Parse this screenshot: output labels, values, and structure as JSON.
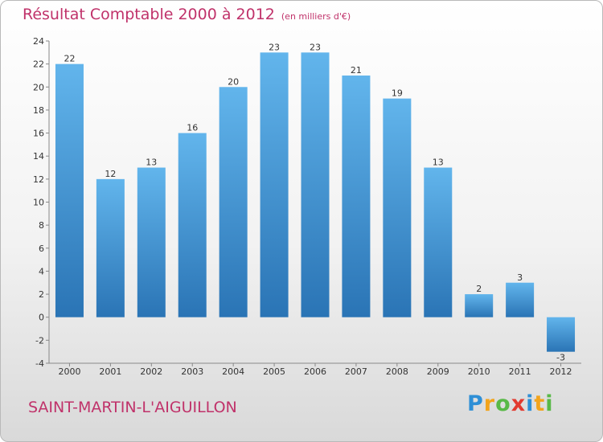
{
  "chart_data": {
    "type": "bar",
    "title": "Résultat Comptable 2000 à 2012",
    "subtitle": "(en milliers d'€)",
    "categories": [
      "2000",
      "2001",
      "2002",
      "2003",
      "2004",
      "2005",
      "2006",
      "2007",
      "2008",
      "2009",
      "2010",
      "2011",
      "2012"
    ],
    "values": [
      22,
      12,
      13,
      16,
      20,
      23,
      23,
      21,
      19,
      13,
      2,
      3,
      -3
    ],
    "ylim": [
      -4,
      24
    ],
    "yticks": [
      -4,
      -2,
      0,
      2,
      4,
      6,
      8,
      10,
      12,
      14,
      16,
      18,
      20,
      22,
      24
    ],
    "xlabel": "",
    "ylabel": "",
    "grid": false
  },
  "commune": "SAINT-MARTIN-L'AIGUILLON",
  "brand": {
    "letters": [
      "P",
      "r",
      "o",
      "x",
      "i",
      "t",
      "i"
    ],
    "colors": [
      "#2e8fd6",
      "#f2a41c",
      "#58b947",
      "#e23a2f",
      "#2e8fd6",
      "#f2a41c",
      "#58b947"
    ]
  },
  "colors": {
    "bar_top": "#62b5ec",
    "bar_bottom": "#2a74b5",
    "accent": "#c0326a"
  }
}
